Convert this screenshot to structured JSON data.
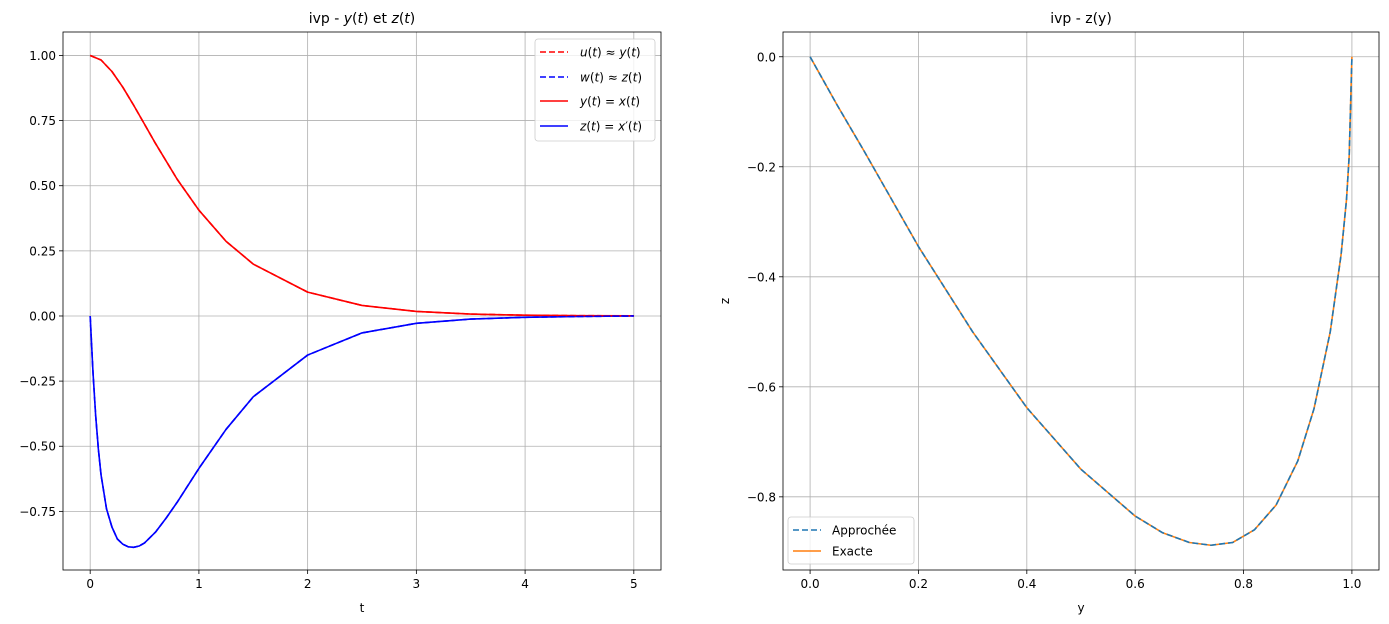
{
  "chart_data": [
    {
      "type": "line",
      "title_parts": [
        "ivp - ",
        "y",
        "(",
        "t",
        ") et ",
        "z",
        "(",
        "t",
        ")"
      ],
      "xlabel": "t",
      "ylabel": "",
      "xlim": [
        -0.25,
        5.25
      ],
      "ylim": [
        -0.975,
        1.09
      ],
      "xticks": [
        0,
        1,
        2,
        3,
        4,
        5
      ],
      "xtick_labels": [
        "0",
        "1",
        "2",
        "3",
        "4",
        "5"
      ],
      "yticks": [
        1.0,
        0.75,
        0.5,
        0.25,
        0.0,
        -0.25,
        -0.5,
        -0.75
      ],
      "ytick_labels": [
        "1.00",
        "0.75",
        "0.50",
        "0.25",
        "0.00",
        "−0.25",
        "−0.50",
        "−0.75"
      ],
      "grid": true,
      "legend_position": "upper right",
      "series": [
        {
          "name": "u(t) ≈ y(t)",
          "color": "#ff0000",
          "dash": "dashed",
          "x": [
            0,
            0.1,
            0.2,
            0.3,
            0.4,
            0.5,
            0.6,
            0.8,
            1.0,
            1.25,
            1.5,
            2.0,
            2.5,
            3.0,
            3.5,
            4.0,
            4.5,
            5.0
          ],
          "y": [
            1.0,
            0.9825,
            0.9384,
            0.8781,
            0.8088,
            0.7358,
            0.6626,
            0.5249,
            0.406,
            0.2865,
            0.1991,
            0.0916,
            0.0404,
            0.0174,
            0.0073,
            0.003,
            0.0012,
            0.0005
          ]
        },
        {
          "name": "w(t) ≈ z(t)",
          "color": "#0000ff",
          "dash": "dashed",
          "x": [
            0,
            0.025,
            0.05,
            0.075,
            0.1,
            0.15,
            0.2,
            0.25,
            0.3,
            0.35,
            0.4,
            0.45,
            0.5,
            0.6,
            0.7,
            0.8,
            1.0,
            1.25,
            1.5,
            2.0,
            2.5,
            3.0,
            3.5,
            4.0,
            4.5,
            5.0
          ],
          "y": [
            0.0,
            -0.21,
            -0.38,
            -0.51,
            -0.61,
            -0.74,
            -0.81,
            -0.856,
            -0.876,
            -0.886,
            -0.888,
            -0.883,
            -0.871,
            -0.83,
            -0.775,
            -0.715,
            -0.585,
            -0.435,
            -0.31,
            -0.15,
            -0.065,
            -0.028,
            -0.012,
            -0.005,
            -0.002,
            0.0
          ]
        },
        {
          "name": "y(t) = x(t)",
          "color": "#ff0000",
          "dash": "solid",
          "x": [
            0,
            0.1,
            0.2,
            0.3,
            0.4,
            0.5,
            0.6,
            0.8,
            1.0,
            1.25,
            1.5,
            2.0,
            2.5,
            3.0,
            3.5,
            4.0,
            4.5,
            5.0
          ],
          "y": [
            1.0,
            0.9825,
            0.9384,
            0.8781,
            0.8088,
            0.7358,
            0.6626,
            0.5249,
            0.406,
            0.2865,
            0.1991,
            0.0916,
            0.0404,
            0.0174,
            0.0073,
            0.003,
            0.0012,
            0.0005
          ]
        },
        {
          "name": "z(t) = x′(t)",
          "color": "#0000ff",
          "dash": "solid",
          "x": [
            0,
            0.025,
            0.05,
            0.075,
            0.1,
            0.15,
            0.2,
            0.25,
            0.3,
            0.35,
            0.4,
            0.45,
            0.5,
            0.6,
            0.7,
            0.8,
            1.0,
            1.25,
            1.5,
            2.0,
            2.5,
            3.0,
            3.5,
            4.0,
            4.5,
            5.0
          ],
          "y": [
            0.0,
            -0.21,
            -0.38,
            -0.51,
            -0.61,
            -0.74,
            -0.81,
            -0.856,
            -0.876,
            -0.886,
            -0.888,
            -0.883,
            -0.871,
            -0.83,
            -0.775,
            -0.715,
            -0.585,
            -0.435,
            -0.31,
            -0.15,
            -0.065,
            -0.028,
            -0.012,
            -0.005,
            -0.002,
            0.0
          ]
        }
      ]
    },
    {
      "type": "line",
      "title": "ivp - z(y)",
      "xlabel": "y",
      "ylabel": "z",
      "xlim": [
        -0.05,
        1.05
      ],
      "ylim": [
        -0.933,
        0.045
      ],
      "xticks": [
        0.0,
        0.2,
        0.4,
        0.6,
        0.8,
        1.0
      ],
      "xtick_labels": [
        "0.0",
        "0.2",
        "0.4",
        "0.6",
        "0.8",
        "1.0"
      ],
      "yticks": [
        0.0,
        -0.2,
        -0.4,
        -0.6,
        -0.8
      ],
      "ytick_labels": [
        "0.0",
        "−0.2",
        "−0.4",
        "−0.6",
        "−0.8"
      ],
      "grid": true,
      "legend_position": "lower left",
      "series": [
        {
          "name": "Approchée",
          "color": "#1f77b4",
          "dash": "dashed",
          "x": [
            0.0,
            0.05,
            0.1,
            0.2,
            0.3,
            0.4,
            0.5,
            0.6,
            0.65,
            0.7,
            0.74,
            0.78,
            0.82,
            0.86,
            0.9,
            0.93,
            0.96,
            0.98,
            0.99,
            0.995,
            1.0
          ],
          "y": [
            0.0,
            -0.088,
            -0.172,
            -0.345,
            -0.5,
            -0.638,
            -0.75,
            -0.835,
            -0.865,
            -0.883,
            -0.888,
            -0.883,
            -0.86,
            -0.815,
            -0.735,
            -0.64,
            -0.5,
            -0.36,
            -0.26,
            -0.18,
            0.0
          ]
        },
        {
          "name": "Exacte",
          "color": "#ff7f0e",
          "dash": "solid",
          "x": [
            0.0,
            0.05,
            0.1,
            0.2,
            0.3,
            0.4,
            0.5,
            0.6,
            0.65,
            0.7,
            0.74,
            0.78,
            0.82,
            0.86,
            0.9,
            0.93,
            0.96,
            0.98,
            0.99,
            0.995,
            1.0
          ],
          "y": [
            0.0,
            -0.088,
            -0.172,
            -0.345,
            -0.5,
            -0.638,
            -0.75,
            -0.835,
            -0.865,
            -0.883,
            -0.888,
            -0.883,
            -0.86,
            -0.815,
            -0.735,
            -0.64,
            -0.5,
            -0.36,
            -0.26,
            -0.18,
            0.0
          ]
        }
      ]
    }
  ]
}
